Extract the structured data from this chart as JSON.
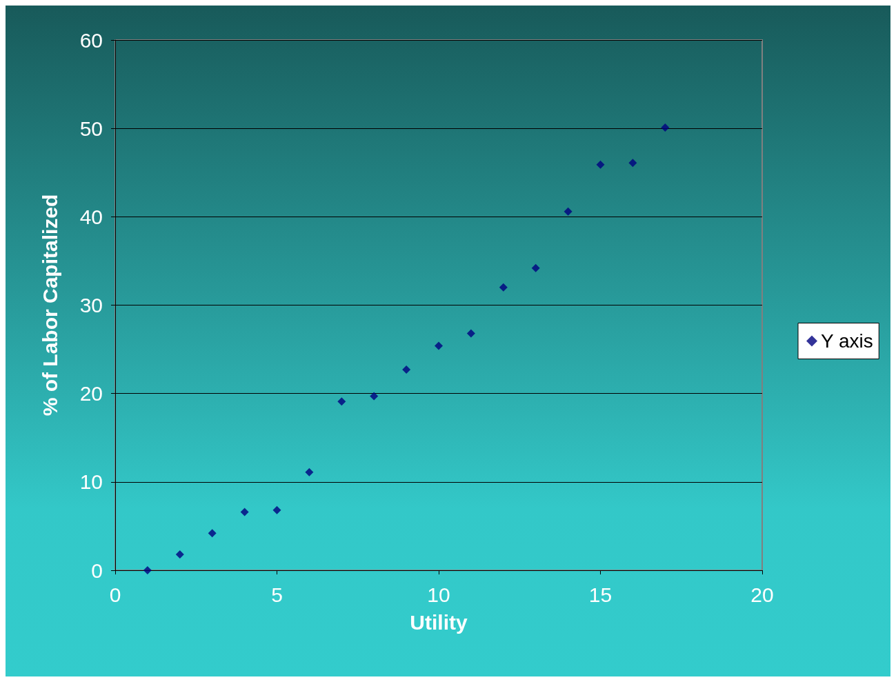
{
  "chart_data": {
    "type": "scatter",
    "xlabel": "Utility",
    "ylabel": "% of Labor Capitalized",
    "x": [
      1,
      2,
      3,
      4,
      5,
      6,
      7,
      8,
      9,
      10,
      11,
      12,
      13,
      14,
      15,
      16,
      17
    ],
    "series": [
      {
        "name": "Y axis",
        "color": "#000080",
        "values": [
          0,
          1.8,
          4.2,
          6.6,
          6.8,
          11.1,
          19.1,
          19.7,
          22.7,
          25.4,
          26.8,
          32.0,
          34.2,
          40.6,
          45.9,
          46.1,
          50.1
        ]
      }
    ],
    "xlim": [
      0,
      20
    ],
    "xticks": [
      0,
      5,
      10,
      15,
      20
    ],
    "ylim": [
      0,
      60
    ],
    "yticks": [
      0,
      10,
      20,
      30,
      40,
      50,
      60
    ],
    "grid": "y",
    "legend": "right",
    "marker": "diamond"
  }
}
